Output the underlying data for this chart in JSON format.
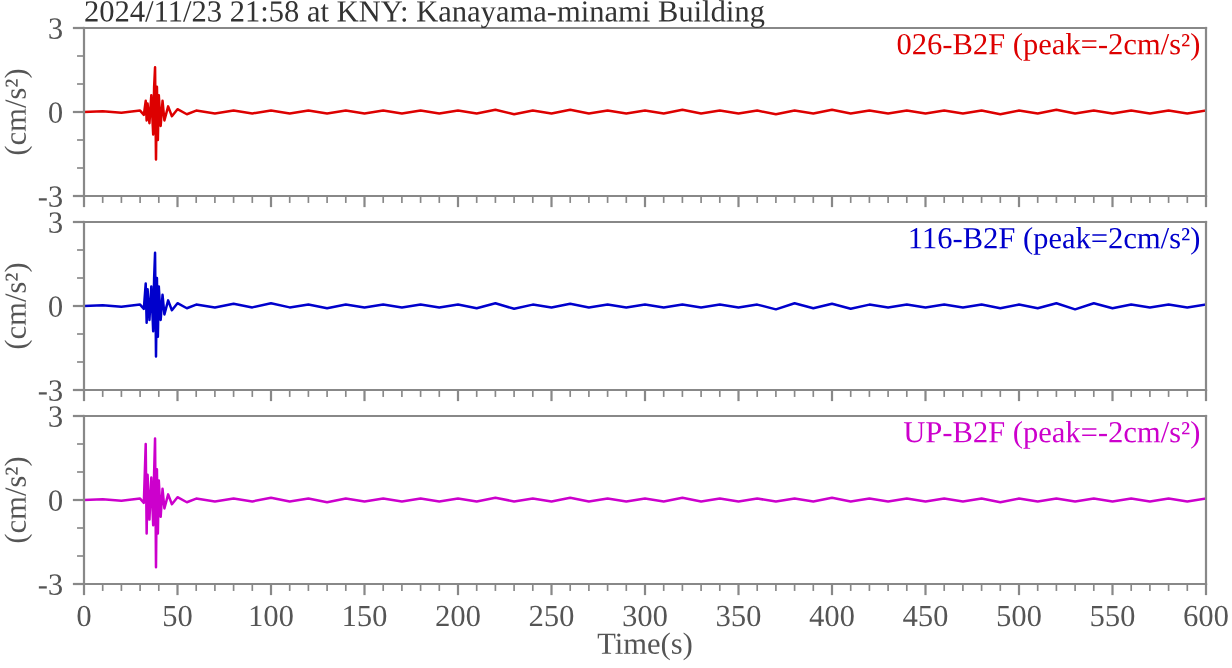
{
  "chart_data": [
    {
      "type": "line",
      "title": "2024/11/23 21:58 at KNY: Kanayama-minami Building",
      "ylabel": "(cm/s²)",
      "tick_labels": "y",
      "xlim": [
        0,
        600
      ],
      "xticks": [
        0,
        50,
        100,
        150,
        200,
        250,
        300,
        350,
        400,
        450,
        500,
        550,
        600
      ],
      "ylim": [
        -3,
        3
      ],
      "yticks": [
        -3,
        0,
        3
      ],
      "x": [
        0,
        10,
        20,
        30,
        32,
        33,
        33.5,
        34,
        35,
        36,
        37,
        37.5,
        38,
        38.5,
        39,
        39.5,
        40,
        41,
        42,
        43,
        45,
        47,
        50,
        55,
        60,
        70,
        80,
        90,
        100,
        110,
        120,
        130,
        140,
        150,
        160,
        170,
        180,
        190,
        200,
        210,
        220,
        230,
        240,
        250,
        260,
        270,
        280,
        290,
        300,
        310,
        320,
        330,
        340,
        350,
        360,
        370,
        380,
        390,
        400,
        410,
        420,
        430,
        440,
        450,
        460,
        470,
        480,
        490,
        500,
        510,
        520,
        530,
        540,
        550,
        560,
        570,
        580,
        590,
        600
      ],
      "series": [
        {
          "name": "026-B2F (peak=-2cm/s²)",
          "color": "#dd0000",
          "values": [
            0,
            0.03,
            -0.03,
            0.05,
            -0.1,
            0.4,
            -0.3,
            0.3,
            -0.4,
            0.6,
            -0.8,
            0.9,
            1.6,
            -1.7,
            0.9,
            -1.0,
            0.6,
            -0.5,
            0.4,
            -0.3,
            0.2,
            -0.15,
            0.1,
            -0.08,
            0.05,
            -0.05,
            0.05,
            -0.05,
            0.05,
            -0.05,
            0.05,
            -0.05,
            0.05,
            -0.05,
            0.05,
            -0.05,
            0.05,
            -0.05,
            0.05,
            -0.05,
            0.08,
            -0.08,
            0.05,
            -0.05,
            0.08,
            -0.05,
            0.05,
            -0.05,
            0.05,
            -0.05,
            0.08,
            -0.05,
            0.05,
            -0.05,
            0.05,
            -0.08,
            0.05,
            -0.05,
            0.08,
            -0.05,
            0.05,
            -0.05,
            0.05,
            -0.05,
            0.05,
            -0.05,
            0.05,
            -0.08,
            0.05,
            -0.05,
            0.08,
            -0.05,
            0.05,
            -0.05,
            0.05,
            -0.05,
            0.05,
            -0.05,
            0.05
          ]
        }
      ]
    },
    {
      "type": "line",
      "ylabel": "(cm/s²)",
      "tick_labels": "y",
      "xlim": [
        0,
        600
      ],
      "xticks": [
        0,
        50,
        100,
        150,
        200,
        250,
        300,
        350,
        400,
        450,
        500,
        550,
        600
      ],
      "ylim": [
        -3,
        3
      ],
      "yticks": [
        -3,
        0,
        3
      ],
      "x": [
        0,
        10,
        20,
        30,
        32,
        33,
        33.5,
        34,
        35,
        36,
        37,
        37.5,
        38,
        38.5,
        39,
        39.5,
        40,
        41,
        42,
        43,
        45,
        47,
        50,
        55,
        60,
        70,
        80,
        90,
        100,
        110,
        120,
        130,
        140,
        150,
        160,
        170,
        180,
        190,
        200,
        210,
        220,
        230,
        240,
        250,
        260,
        270,
        280,
        290,
        300,
        310,
        320,
        330,
        340,
        350,
        360,
        370,
        380,
        390,
        400,
        410,
        420,
        430,
        440,
        450,
        460,
        470,
        480,
        490,
        500,
        510,
        520,
        530,
        540,
        550,
        560,
        570,
        580,
        590,
        600
      ],
      "series": [
        {
          "name": "116-B2F (peak=2cm/s²)",
          "color": "#0000cc",
          "values": [
            0,
            0.03,
            -0.03,
            0.05,
            -0.1,
            0.8,
            -0.6,
            0.6,
            -0.5,
            0.7,
            -0.9,
            1.0,
            1.9,
            -1.8,
            1.0,
            -1.1,
            0.7,
            -0.5,
            0.4,
            -0.3,
            0.2,
            -0.15,
            0.1,
            -0.08,
            0.05,
            -0.05,
            0.08,
            -0.05,
            0.1,
            -0.05,
            0.05,
            -0.08,
            0.05,
            -0.05,
            0.05,
            -0.05,
            0.05,
            -0.05,
            0.05,
            -0.08,
            0.1,
            -0.1,
            0.05,
            -0.05,
            0.08,
            -0.05,
            0.05,
            -0.05,
            0.05,
            -0.05,
            0.05,
            -0.05,
            0.05,
            -0.05,
            0.05,
            -0.12,
            0.1,
            -0.08,
            0.08,
            -0.1,
            0.05,
            -0.05,
            0.05,
            -0.05,
            0.05,
            -0.05,
            0.05,
            -0.08,
            0.05,
            -0.08,
            0.1,
            -0.12,
            0.1,
            -0.08,
            0.05,
            -0.05,
            0.05,
            -0.05,
            0.05
          ]
        }
      ]
    },
    {
      "type": "line",
      "ylabel": "(cm/s²)",
      "xlabel": "Time(s)",
      "xlim": [
        0,
        600
      ],
      "xticks": [
        0,
        50,
        100,
        150,
        200,
        250,
        300,
        350,
        400,
        450,
        500,
        550,
        600
      ],
      "ylim": [
        -3,
        3
      ],
      "yticks": [
        -3,
        0,
        3
      ],
      "x": [
        0,
        10,
        20,
        30,
        32,
        33,
        33.5,
        34,
        35,
        36,
        37,
        37.5,
        38,
        38.5,
        39,
        39.5,
        40,
        41,
        42,
        43,
        45,
        47,
        50,
        55,
        60,
        70,
        80,
        90,
        100,
        110,
        120,
        130,
        140,
        150,
        160,
        170,
        180,
        190,
        200,
        210,
        220,
        230,
        240,
        250,
        260,
        270,
        280,
        290,
        300,
        310,
        320,
        330,
        340,
        350,
        360,
        370,
        380,
        390,
        400,
        410,
        420,
        430,
        440,
        450,
        460,
        470,
        480,
        490,
        500,
        510,
        520,
        530,
        540,
        550,
        560,
        570,
        580,
        590,
        600
      ],
      "series": [
        {
          "name": "UP-B2F (peak=-2cm/s²)",
          "color": "#cc00cc",
          "values": [
            0,
            0.03,
            -0.03,
            0.05,
            -0.1,
            2.0,
            -1.2,
            0.9,
            -0.7,
            0.8,
            -0.9,
            1.0,
            2.2,
            -2.4,
            1.1,
            -1.2,
            0.7,
            -0.6,
            0.4,
            -0.3,
            0.2,
            -0.15,
            0.1,
            -0.08,
            0.05,
            -0.05,
            0.05,
            -0.05,
            0.08,
            -0.05,
            0.05,
            -0.08,
            0.05,
            -0.05,
            0.05,
            -0.05,
            0.05,
            -0.05,
            0.05,
            -0.05,
            0.08,
            -0.05,
            0.05,
            -0.05,
            0.08,
            -0.05,
            0.05,
            -0.05,
            0.05,
            -0.05,
            0.08,
            -0.05,
            0.05,
            -0.05,
            0.05,
            -0.05,
            0.05,
            -0.05,
            0.08,
            -0.05,
            0.05,
            -0.05,
            0.05,
            -0.05,
            0.05,
            -0.05,
            0.05,
            -0.08,
            0.05,
            -0.05,
            0.05,
            -0.05,
            0.05,
            -0.05,
            0.05,
            -0.05,
            0.05,
            -0.05,
            0.05
          ]
        }
      ]
    }
  ]
}
